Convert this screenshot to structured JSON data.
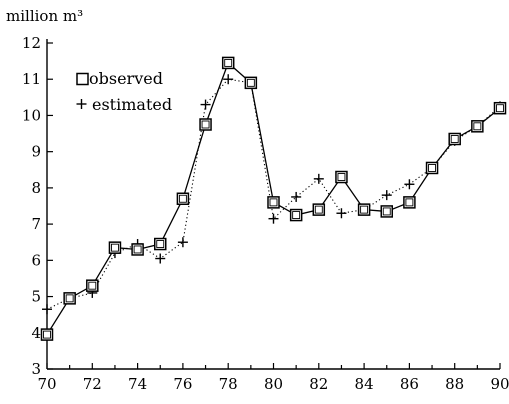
{
  "chart_data": {
    "type": "line",
    "ylabel": "million m³",
    "xlabel": "",
    "x": [
      70,
      71,
      72,
      73,
      74,
      75,
      76,
      77,
      78,
      79,
      80,
      81,
      82,
      83,
      84,
      85,
      86,
      87,
      88,
      89,
      90
    ],
    "xlim": [
      70,
      90
    ],
    "ylim": [
      3,
      12
    ],
    "xticks": [
      70,
      72,
      74,
      76,
      78,
      80,
      82,
      84,
      86,
      88,
      90
    ],
    "yticks": [
      3,
      4,
      5,
      6,
      7,
      8,
      9,
      10,
      11,
      12
    ],
    "legend_position": "upper-left",
    "series": [
      {
        "name": "observed",
        "marker": "square",
        "values": [
          3.95,
          4.95,
          5.3,
          6.35,
          6.3,
          6.45,
          7.7,
          9.75,
          11.45,
          10.9,
          7.6,
          7.25,
          7.4,
          8.3,
          7.4,
          7.35,
          7.6,
          8.55,
          9.35,
          9.7,
          10.2
        ]
      },
      {
        "name": "estimated",
        "marker": "plus",
        "values": [
          4.65,
          4.95,
          5.1,
          6.2,
          6.45,
          6.05,
          6.5,
          10.3,
          11.0,
          10.9,
          7.15,
          7.75,
          8.25,
          7.3,
          7.4,
          7.8,
          8.1,
          8.55,
          9.3,
          9.7,
          10.25
        ]
      }
    ]
  }
}
